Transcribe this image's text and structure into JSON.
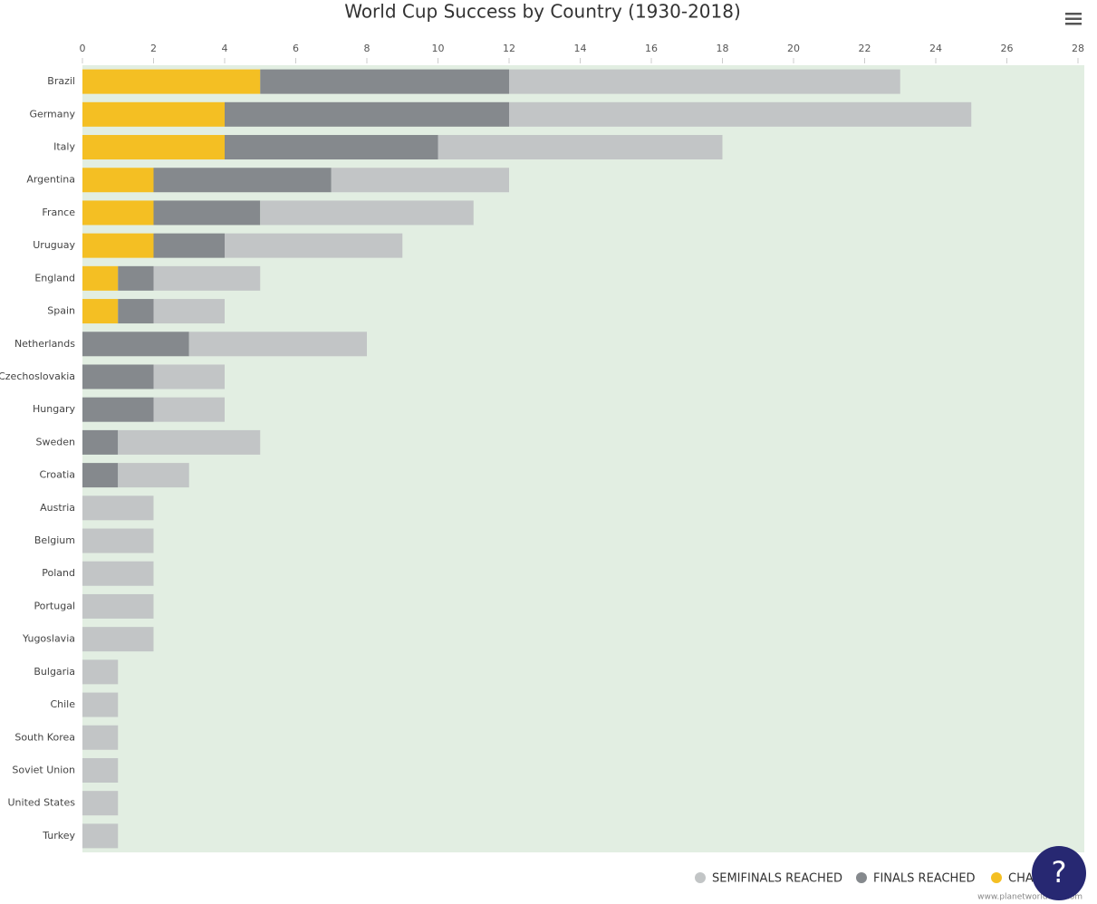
{
  "chart_data": {
    "type": "stacked-bar-horizontal",
    "title": "World Cup Success by Country (1930-2018)",
    "categories": [
      "Brazil",
      "Germany",
      "Italy",
      "Argentina",
      "France",
      "Uruguay",
      "England",
      "Spain",
      "Netherlands",
      "Czechoslovakia",
      "Hungary",
      "Sweden",
      "Croatia",
      "Austria",
      "Belgium",
      "Poland",
      "Portugal",
      "Yugoslavia",
      "Bulgaria",
      "Chile",
      "South Korea",
      "Soviet Union",
      "United States",
      "Turkey"
    ],
    "series": [
      {
        "name": "SEMIFINALS REACHED",
        "color": "#c2c5c6",
        "values": [
          11,
          13,
          8,
          5,
          6,
          5,
          3,
          2,
          5,
          2,
          2,
          4,
          2,
          2,
          2,
          2,
          2,
          2,
          1,
          1,
          1,
          1,
          1,
          1
        ]
      },
      {
        "name": "FINALS REACHED",
        "color": "#85898d",
        "values": [
          7,
          8,
          6,
          5,
          3,
          2,
          1,
          1,
          3,
          2,
          2,
          1,
          1,
          0,
          0,
          0,
          0,
          0,
          0,
          0,
          0,
          0,
          0,
          0
        ]
      },
      {
        "name": "CHAMPIONS",
        "color": "#f4bf23",
        "values": [
          5,
          4,
          4,
          2,
          2,
          2,
          1,
          1,
          0,
          0,
          0,
          0,
          0,
          0,
          0,
          0,
          0,
          0,
          0,
          0,
          0,
          0,
          0,
          0
        ]
      }
    ],
    "xlim": [
      0,
      28
    ],
    "xticks": [
      0,
      2,
      4,
      6,
      8,
      10,
      12,
      14,
      16,
      18,
      20,
      22,
      24,
      26,
      28
    ],
    "credit": "www.planetworldcup.com"
  }
}
